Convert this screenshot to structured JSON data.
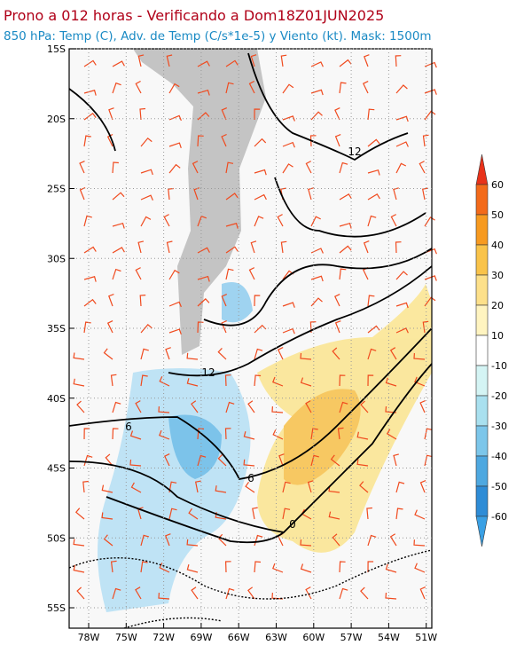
{
  "header": {
    "title": "Prono a 012 horas - Verificando a Dom18Z01JUN2025",
    "subtitle": "850 hPa: Temp (C), Adv. de Temp (C/s*1e-5) y Viento (kt). Mask: 1500m"
  },
  "map": {
    "lat_labels": [
      "15S",
      "20S",
      "25S",
      "30S",
      "35S",
      "40S",
      "45S",
      "50S",
      "55S"
    ],
    "lon_labels": [
      "78W",
      "75W",
      "72W",
      "69W",
      "66W",
      "63W",
      "60W",
      "57W",
      "54W",
      "51W"
    ],
    "contour_labels": [
      "12",
      "12",
      "6",
      "6",
      "0"
    ]
  },
  "colorbar": {
    "labels": [
      "60",
      "50",
      "40",
      "30",
      "20",
      "10",
      "-10",
      "-20",
      "-30",
      "-40",
      "-50",
      "-60"
    ]
  }
}
